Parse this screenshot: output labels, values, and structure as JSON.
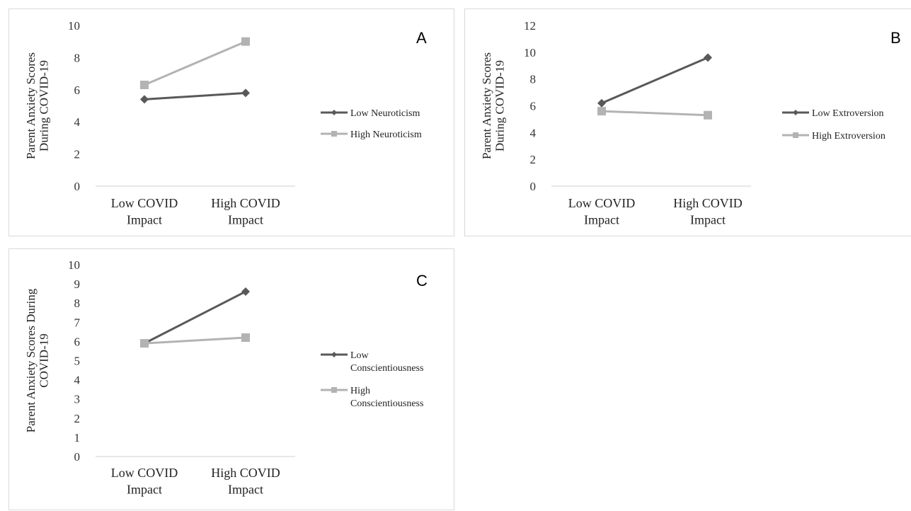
{
  "chart_data": [
    {
      "type": "line",
      "panel_label": "A",
      "categories": [
        "Low COVID|Impact",
        "High COVID|Impact"
      ],
      "ylabel": "Parent Anxiety Scores|During COVID-19",
      "ylim": [
        0,
        10
      ],
      "yticks": [
        0,
        2,
        4,
        6,
        8,
        10
      ],
      "series": [
        {
          "name": "Low Neuroticism",
          "values": [
            5.4,
            5.8
          ],
          "color": "#595959",
          "marker": "diamond"
        },
        {
          "name": "High Neuroticism",
          "values": [
            6.3,
            9.0
          ],
          "color": "#b3b3b3",
          "marker": "square"
        }
      ],
      "grid": false,
      "legend_position": "right"
    },
    {
      "type": "line",
      "panel_label": "B",
      "categories": [
        "Low COVID|Impact",
        "High COVID|Impact"
      ],
      "ylabel": "Parent Anxiety Scores|During COVID-19",
      "ylim": [
        0,
        12
      ],
      "yticks": [
        0,
        2,
        4,
        6,
        8,
        10,
        12
      ],
      "series": [
        {
          "name": "Low Extroversion",
          "values": [
            6.2,
            9.6
          ],
          "color": "#595959",
          "marker": "diamond"
        },
        {
          "name": "High Extroversion",
          "values": [
            5.6,
            5.3
          ],
          "color": "#b3b3b3",
          "marker": "square"
        }
      ],
      "grid": false,
      "legend_position": "right"
    },
    {
      "type": "line",
      "panel_label": "C",
      "categories": [
        "Low COVID|Impact",
        "High COVID|Impact"
      ],
      "ylabel": "Parent Anxiety Scores During|COVID-19",
      "ylim": [
        0,
        10
      ],
      "yticks": [
        0,
        1,
        2,
        3,
        4,
        5,
        6,
        7,
        8,
        9,
        10
      ],
      "series": [
        {
          "name": "Low|Conscientiousness",
          "values": [
            5.9,
            8.6
          ],
          "color": "#595959",
          "marker": "diamond"
        },
        {
          "name": "High|Conscientiousness",
          "values": [
            5.9,
            6.2
          ],
          "color": "#b3b3b3",
          "marker": "square"
        }
      ],
      "grid": false,
      "legend_position": "right"
    }
  ]
}
